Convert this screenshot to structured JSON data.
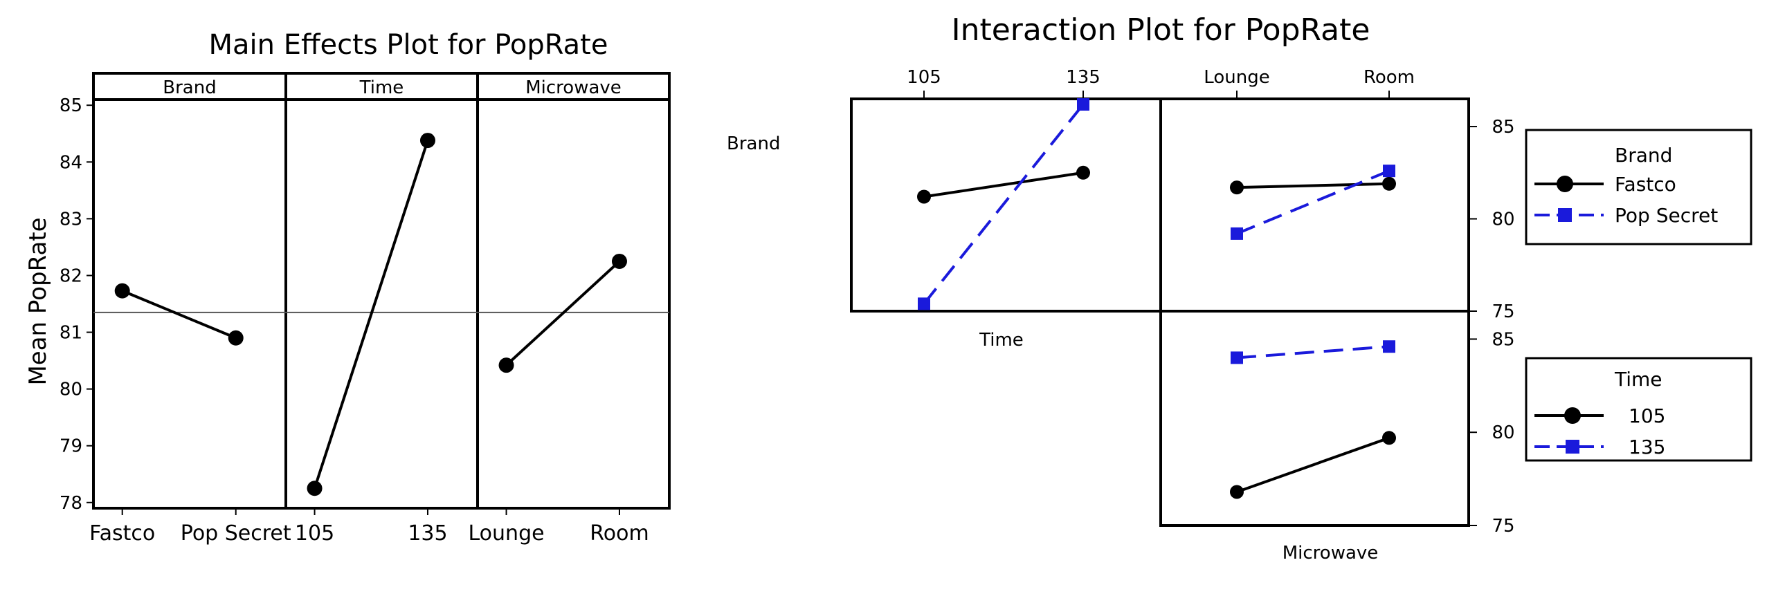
{
  "chart_data": [
    {
      "type": "line",
      "title": "Main Effects Plot for PopRate",
      "ylabel": "Mean PopRate",
      "xlabel": "",
      "ylim": [
        77.9,
        85.1
      ],
      "yticks": [
        78,
        79,
        80,
        81,
        82,
        83,
        84,
        85
      ],
      "grand_mean": 81.35,
      "grid": false,
      "colors": {
        "line": "#000000",
        "marker": "#000000"
      },
      "panels": [
        {
          "factor": "Brand",
          "categories": [
            "Fastco",
            "Pop Secret"
          ],
          "values": [
            81.73,
            80.9
          ]
        },
        {
          "factor": "Time",
          "categories": [
            "105",
            "135"
          ],
          "values": [
            78.25,
            84.38
          ]
        },
        {
          "factor": "Microwave",
          "categories": [
            "Lounge",
            "Room"
          ],
          "values": [
            80.42,
            82.25
          ]
        }
      ]
    },
    {
      "type": "line",
      "title": "Interaction Plot for PopRate",
      "grid": false,
      "row_factor_labels": [
        "Brand",
        ""
      ],
      "column_factor_labels": [
        "Time",
        "Microwave"
      ],
      "top_tick_labels": [
        [
          "105",
          "135"
        ],
        [
          "Lounge",
          "Room"
        ]
      ],
      "x_axis_labels": [
        "Time",
        "Microwave"
      ],
      "ylim_row1": [
        75,
        86.5
      ],
      "yticks_row1": [
        75,
        80,
        85
      ],
      "ylim_row2": [
        75,
        86.5
      ],
      "yticks_row2": [
        75,
        80,
        85
      ],
      "legends": [
        {
          "title": "Brand",
          "entries": [
            {
              "name": "Fastco",
              "color": "#000000",
              "marker": "circle",
              "dash": "solid"
            },
            {
              "name": "Pop Secret",
              "color": "#1a1adb",
              "marker": "square",
              "dash": "dashed"
            }
          ]
        },
        {
          "title": "Time",
          "entries": [
            {
              "name": "105",
              "color": "#000000",
              "marker": "circle",
              "dash": "solid"
            },
            {
              "name": "135",
              "color": "#1a1adb",
              "marker": "square",
              "dash": "dashed"
            }
          ]
        }
      ],
      "panels": [
        {
          "id": "brand-by-time",
          "x_factor": "Time",
          "trace_factor": "Brand",
          "categories": [
            "105",
            "135"
          ],
          "series": [
            {
              "name": "Fastco",
              "values": [
                81.2,
                82.5
              ]
            },
            {
              "name": "Pop Secret",
              "values": [
                75.4,
                86.2
              ]
            }
          ]
        },
        {
          "id": "brand-by-microwave",
          "x_factor": "Microwave",
          "trace_factor": "Brand",
          "categories": [
            "Lounge",
            "Room"
          ],
          "series": [
            {
              "name": "Fastco",
              "values": [
                81.7,
                81.9
              ]
            },
            {
              "name": "Pop Secret",
              "values": [
                79.2,
                82.6
              ]
            }
          ]
        },
        {
          "id": "time-by-microwave",
          "x_factor": "Microwave",
          "trace_factor": "Time",
          "categories": [
            "Lounge",
            "Room"
          ],
          "series": [
            {
              "name": "105",
              "values": [
                76.8,
                79.7
              ]
            },
            {
              "name": "135",
              "values": [
                84.0,
                84.6
              ]
            }
          ]
        }
      ]
    }
  ]
}
